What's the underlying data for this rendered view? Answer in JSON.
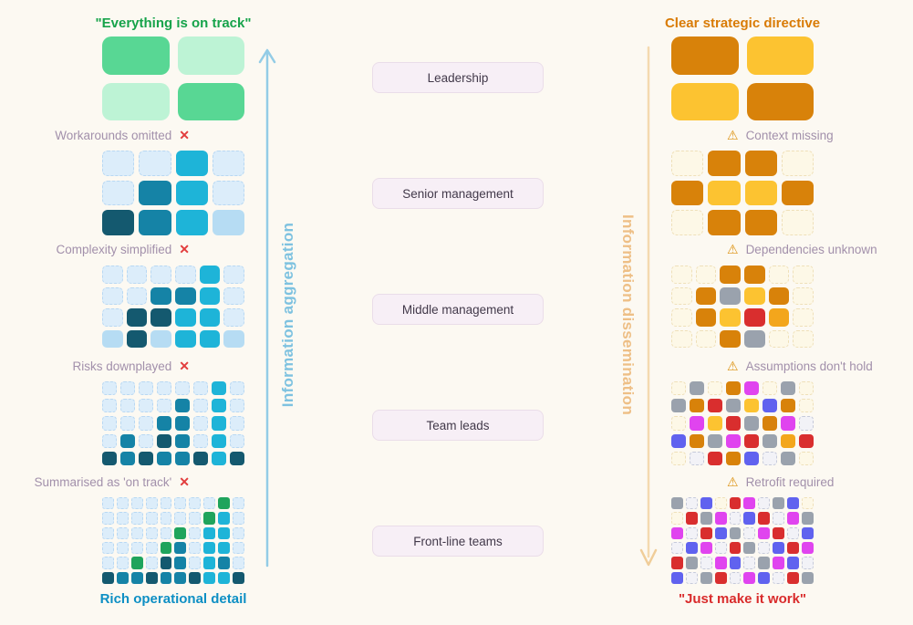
{
  "icons": {
    "cross": "✕",
    "warning": "⚠",
    "up_arrow": "arrow-up",
    "down_arrow": "arrow-down"
  },
  "levels": [
    "Leadership",
    "Senior management",
    "Middle management",
    "Team leads",
    "Front-line teams"
  ],
  "left_flow": {
    "top_label": "\"Everything is on track\"",
    "bottom_label": "Rich operational detail",
    "arrow_label": "Information aggregation",
    "loss_labels": [
      "Workarounds omitted",
      "Complexity simplified",
      "Risks downplayed",
      "Summarised as 'on track'"
    ],
    "grids": [
      [
        "GH",
        "HG"
      ],
      [
        "ppcp",
        "ptcp",
        "dtcl"
      ],
      [
        "ppppcp",
        "ppttcp",
        "pddccp",
        "ldlccl"
      ],
      [
        "ppppppcp",
        "pppptpcp",
        "pppttpcp",
        "ptpdtpcp",
        "dtdttdcd"
      ],
      [
        "ppppppppgp",
        "pppppppgcp",
        "pppppgpccp",
        "ppppgtpccp",
        "ppgpdtpctp",
        "dttdttdccd"
      ]
    ]
  },
  "right_flow": {
    "top_label": "Clear strategic directive",
    "bottom_label": "\"Just make it work\"",
    "arrow_label": "Information dissemination",
    "issue_labels": [
      "Context missing",
      "Dependencies unknown",
      "Assumptions don't hold",
      "Retrofit required"
    ],
    "grids": [
      [
        "oy",
        "yo"
      ],
      [
        "kook",
        "oyyo",
        "kook"
      ],
      [
        "kkookk",
        "kosyok",
        "koyrak",
        "kkoskk"
      ],
      [
        "kskofksk",
        "sorsybok",
        "kfyrsofe",
        "bosfrsar",
        "kerobesk"
      ],
      [
        "sebkrfesbk",
        "krsfebrefs",
        "ferbsefreb",
        "ebfersebrf",
        "rsefbesfbe",
        "besrefbers"
      ]
    ]
  },
  "palette": {
    "G": "#58d794",
    "H": "#bdf3d5",
    "p": "#dcedfa",
    "l": "#b6dcf3",
    "c": "#1eb4d8",
    "t": "#1583a6",
    "d": "#14596f",
    "g": "#1fa45c",
    "k": "#fdf8e7",
    "o": "#d8820a",
    "y": "#fcc331",
    "a": "#f3a61c",
    "r": "#d92e2e",
    "s": "#9aa2ad",
    "f": "#e044ef",
    "b": "#6062ef",
    "e": "#f2f2f7"
  },
  "colors": {
    "background": "#fcf9f2",
    "left_title": "#16a34a",
    "left_bottom": "#0d8fc4",
    "right_title": "#d97b06",
    "right_bottom": "#d92b2b",
    "label_text": "#a290ab",
    "cross": "#e23d3d",
    "warning": "#dd9210",
    "left_arrow": "#93cce6",
    "left_arrow_text": "#7ec2e0",
    "right_arrow": "#f4d9af",
    "right_arrow_text": "#eebf86",
    "pill_bg": "#f7eff6",
    "pill_text": "#42394a"
  }
}
